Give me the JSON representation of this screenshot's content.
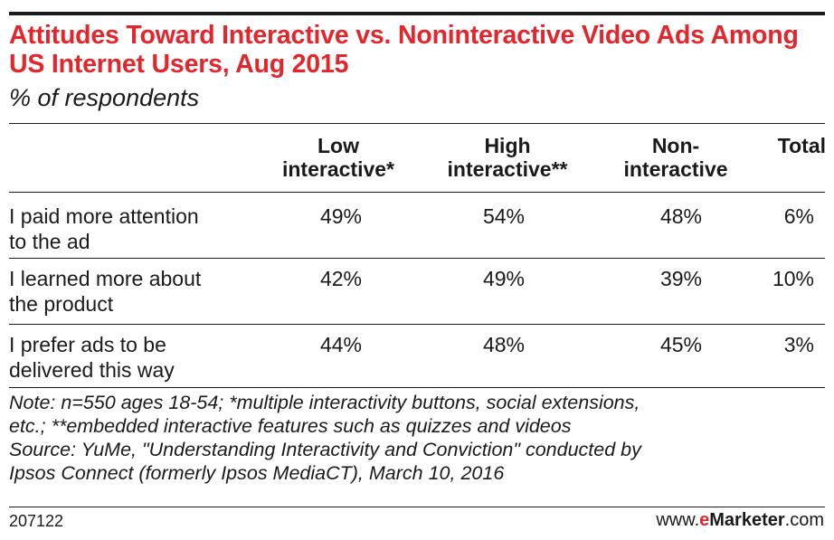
{
  "header": {
    "title": "Attitudes Toward Interactive vs. Noninteractive Video Ads Among US Internet Users, Aug 2015",
    "subtitle": "% of respondents"
  },
  "chart_data": {
    "type": "table",
    "title": "Attitudes Toward Interactive vs. Noninteractive Video Ads Among US Internet Users, Aug 2015",
    "subtitle": "% of respondents",
    "columns": [
      "Low interactive*",
      "High interactive**",
      "Non-interactive",
      "Total"
    ],
    "column_headers": [
      {
        "line1": "Low",
        "line2": "interactive*"
      },
      {
        "line1": "High",
        "line2": "interactive**"
      },
      {
        "line1": "Non-",
        "line2": "interactive"
      },
      {
        "line1": "Total",
        "line2": ""
      }
    ],
    "rows": [
      {
        "label_line1": "I paid more attention",
        "label_line2": "to the ad",
        "values": [
          "49%",
          "54%",
          "48%",
          "6%"
        ]
      },
      {
        "label_line1": "I learned more about",
        "label_line2": "the product",
        "values": [
          "42%",
          "49%",
          "39%",
          "10%"
        ]
      },
      {
        "label_line1": "I prefer ads to be",
        "label_line2": "delivered this way",
        "values": [
          "44%",
          "48%",
          "45%",
          "3%"
        ]
      }
    ],
    "unit": "%"
  },
  "notes": {
    "line1": "Note: n=550 ages 18-54; *multiple interactivity buttons, social extensions,",
    "line2": "etc.; **embedded interactive features such as quizzes and videos",
    "line3": "Source: YuMe, \"Understanding Interactivity and Conviction\" conducted by",
    "line4": "Ipsos Connect (formerly Ipsos MediaCT), March 10, 2016"
  },
  "footer": {
    "chart_id": "207122",
    "brand_prefix": "www.",
    "brand_e": "e",
    "brand_name": "Marketer",
    "brand_suffix": ".com"
  },
  "colors": {
    "title": "#e3262b",
    "text": "#1a1a1a",
    "rule": "#1a1a1a"
  }
}
